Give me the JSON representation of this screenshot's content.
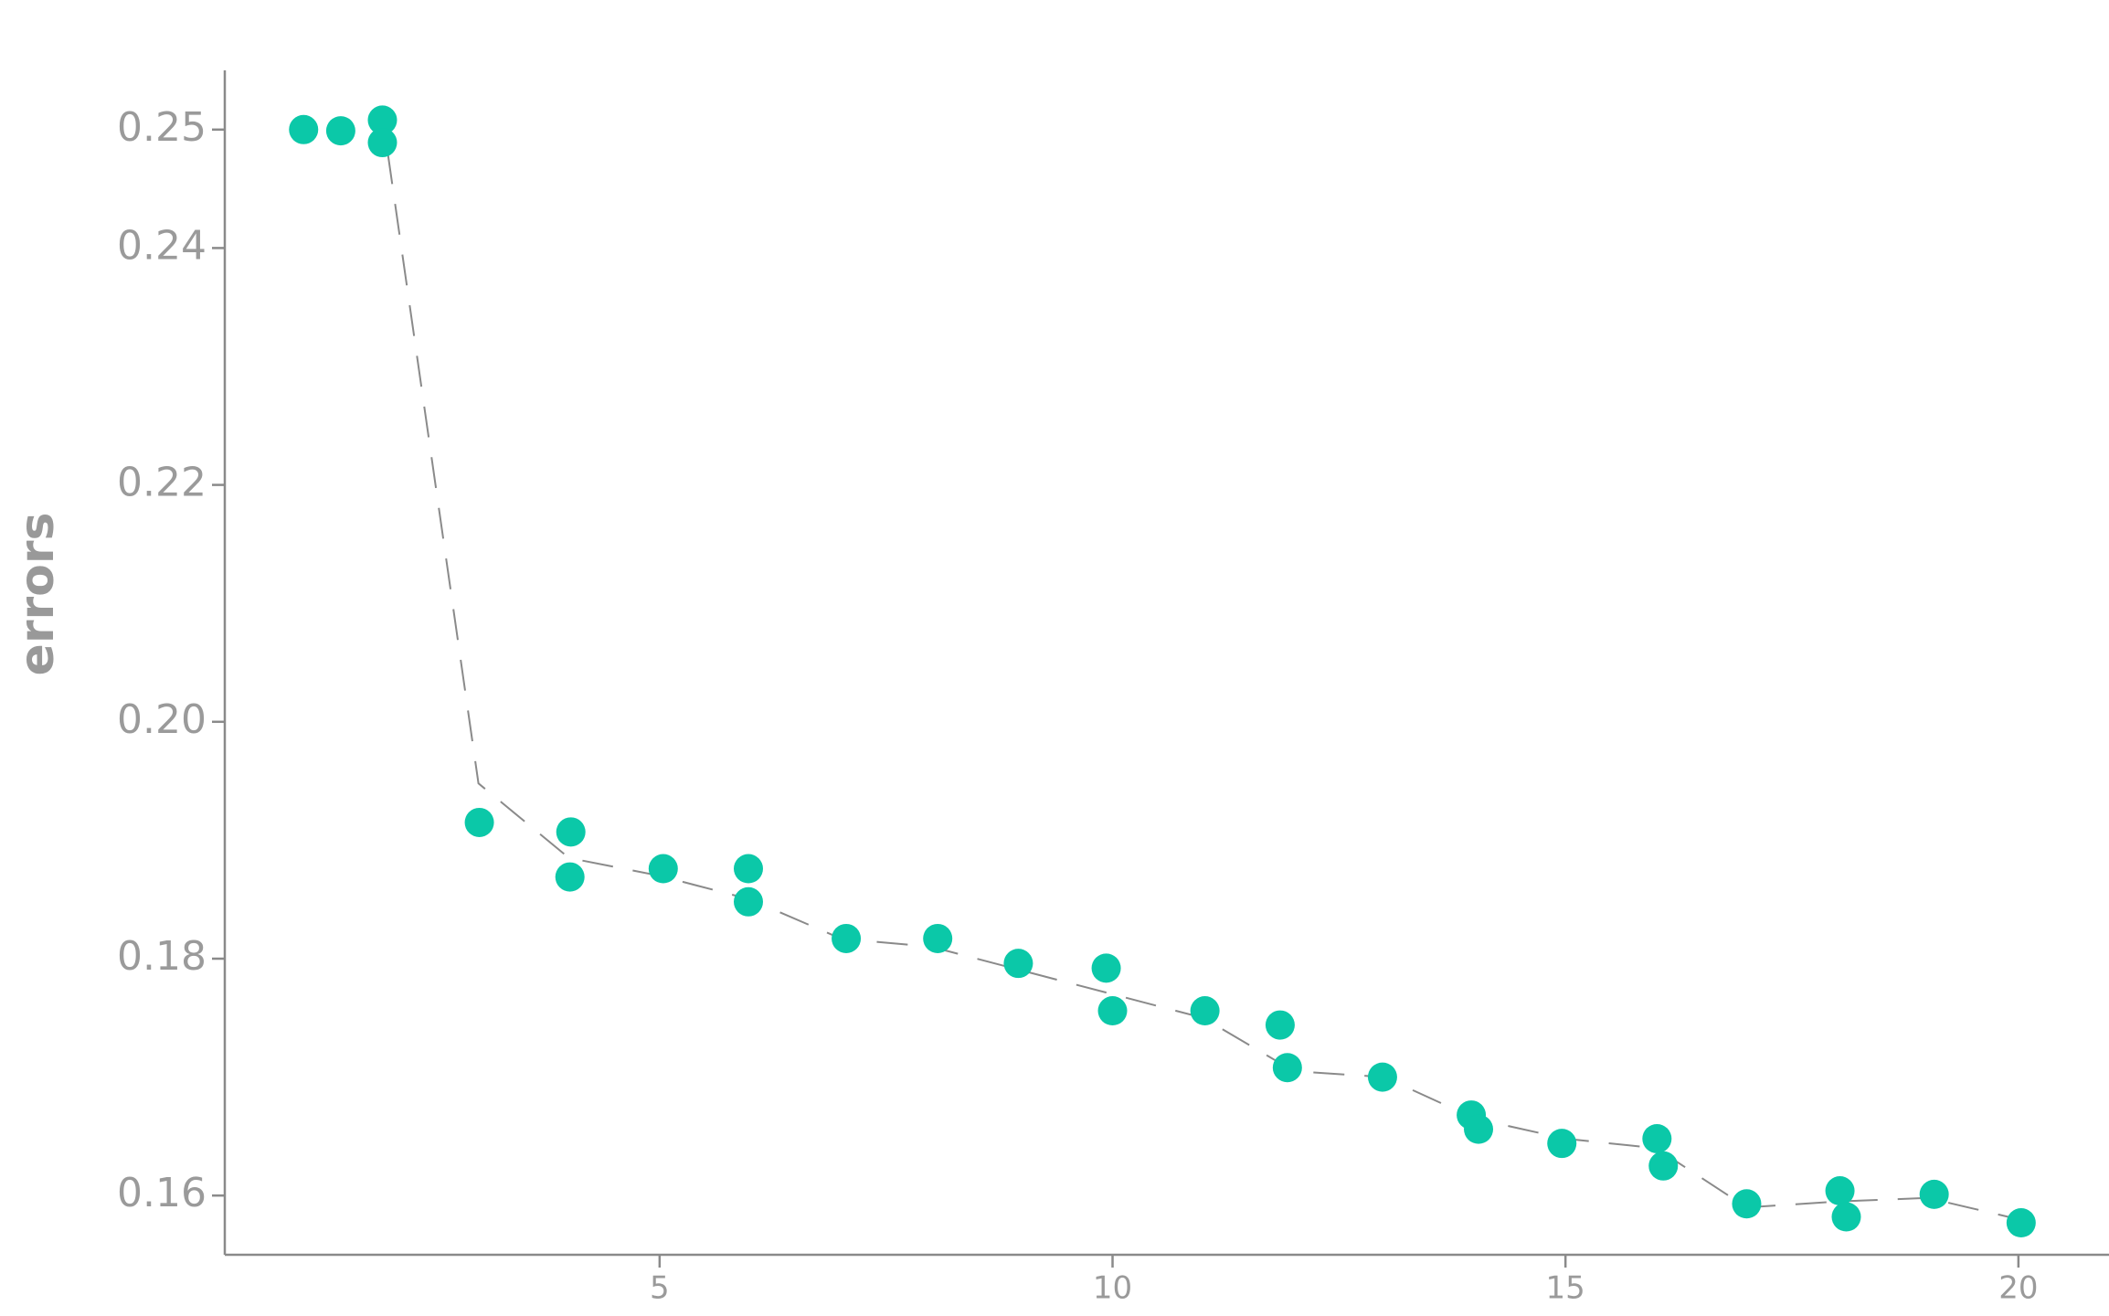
{
  "chart_data": {
    "type": "scatter",
    "y_label": "errors",
    "x": [
      1.07,
      1.48,
      1.94,
      1.94,
      3.01,
      4.02,
      4.01,
      5.04,
      5.98,
      5.98,
      7.06,
      8.07,
      8.96,
      9.93,
      10.0,
      11.02,
      11.85,
      11.93,
      12.98,
      13.96,
      14.04,
      14.96,
      16.01,
      16.08,
      17.0,
      18.03,
      18.1,
      19.07,
      20.03
    ],
    "values": [
      0.25,
      0.2499,
      0.2508,
      0.2489,
      0.1915,
      0.1907,
      0.1869,
      0.1876,
      0.1876,
      0.1848,
      0.1817,
      0.1817,
      0.1796,
      0.1792,
      0.1756,
      0.1756,
      0.1744,
      0.1708,
      0.17,
      0.1668,
      0.1656,
      0.1644,
      0.1648,
      0.1625,
      0.1593,
      0.1604,
      0.1582,
      0.1601,
      0.1577
    ],
    "color": "#0bc8a8",
    "trend": {
      "x": [
        2.0,
        3.0,
        4.0,
        5.0,
        6.0,
        7.0,
        8.0,
        9.0,
        10.0,
        11.0,
        12.0,
        13.0,
        14.0,
        15.0,
        16.0,
        17.0,
        18.0,
        19.0,
        20.0
      ],
      "values": [
        0.248,
        0.1948,
        0.1885,
        0.187,
        0.185,
        0.1817,
        0.181,
        0.179,
        0.177,
        0.175,
        0.1705,
        0.17,
        0.1665,
        0.1648,
        0.164,
        0.159,
        0.1595,
        0.1598,
        0.158
      ],
      "color": "#8a8a8a"
    },
    "xlim": [
      0.2,
      21
    ],
    "ylim": [
      0.155,
      0.255
    ],
    "xticks": [
      5,
      10,
      15,
      20
    ],
    "yticks": [
      0.25,
      0.24,
      0.22,
      {
        "value": 0.2,
        "label": "0.20"
      },
      0.18,
      0.16
    ]
  }
}
